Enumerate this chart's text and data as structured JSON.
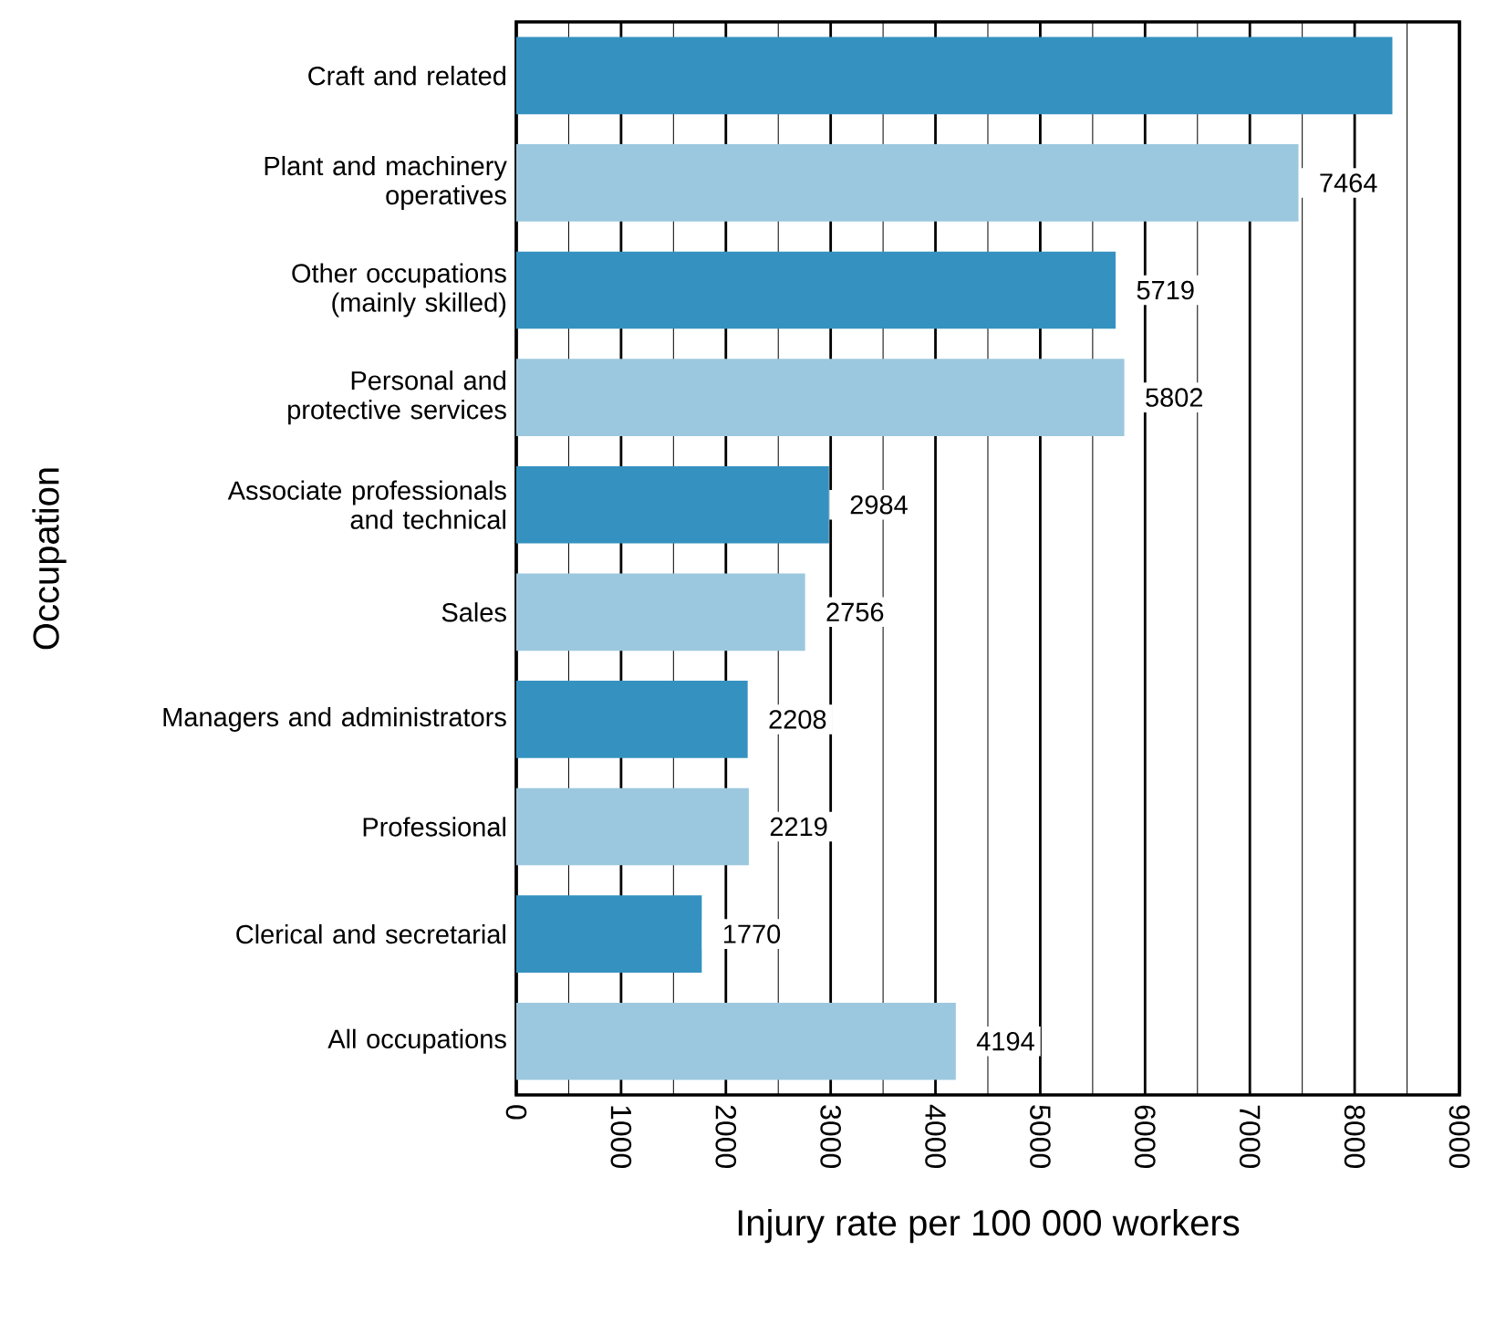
{
  "chart_data": {
    "type": "bar",
    "orientation": "horizontal",
    "xlabel": "Injury rate per 100 000 workers",
    "ylabel": "Occupation",
    "categories": [
      "Craft and related",
      "Plant and machinery operatives",
      "Other occupations (mainly skilled)",
      "Personal and protective services",
      "Associate professionals and technical",
      "Sales",
      "Managers and administrators",
      "Professional",
      "Clerical and secretarial",
      "All occupations"
    ],
    "values": [
      8360,
      7464,
      5719,
      5802,
      2984,
      2756,
      2208,
      2219,
      1770,
      4194
    ],
    "value_labels": [
      null,
      "7464",
      "5719",
      "5802",
      "2984",
      "2756",
      "2208",
      "2219",
      "1770",
      "4194"
    ],
    "colors": [
      "#3592c0",
      "#9bc8df",
      "#3592c0",
      "#9bc8df",
      "#3592c0",
      "#9bc8df",
      "#3592c0",
      "#9bc8df",
      "#3592c0",
      "#9bc8df"
    ],
    "xlim": [
      0,
      9000
    ],
    "xticks": [
      0,
      1000,
      2000,
      3000,
      4000,
      5000,
      6000,
      7000,
      8000,
      9000
    ],
    "grid": "x"
  }
}
